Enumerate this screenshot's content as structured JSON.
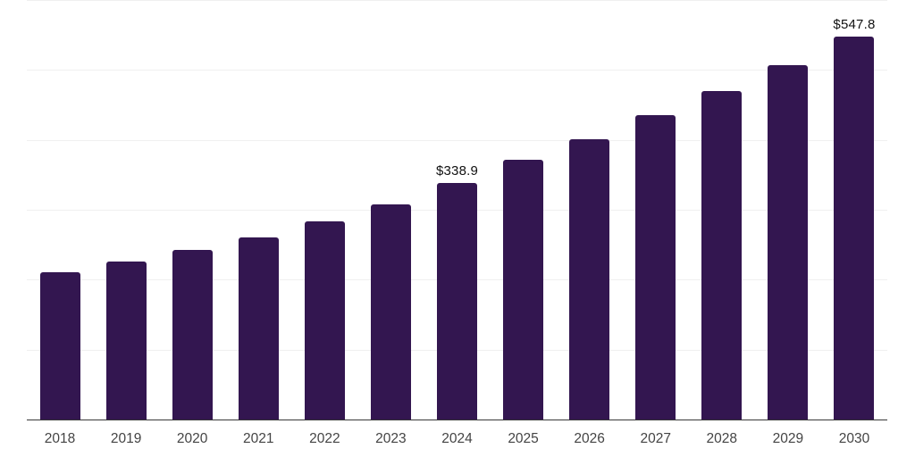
{
  "chart_data": {
    "type": "bar",
    "title": "",
    "xlabel": "",
    "ylabel": "",
    "categories": [
      "2018",
      "2019",
      "2020",
      "2021",
      "2022",
      "2023",
      "2024",
      "2025",
      "2026",
      "2027",
      "2028",
      "2029",
      "2030"
    ],
    "values": [
      210.3,
      225.4,
      242.0,
      260.9,
      283.4,
      308.0,
      338.9,
      372.1,
      401.5,
      435.1,
      470.0,
      507.3,
      547.8
    ],
    "labeled_points": [
      {
        "category": "2024",
        "label": "$338.9"
      },
      {
        "category": "2030",
        "label": "$547.8"
      }
    ],
    "ylim": [
      0,
      600
    ],
    "grid_interval": 100,
    "grid": true,
    "legend": false,
    "y_tick_labels_shown": false
  },
  "colors": {
    "background": "#ffffff",
    "bar": "#331650",
    "gridline": "#f0f0f0",
    "axis_line": "#383838",
    "data_label": "#111111",
    "tick_label": "#444444"
  }
}
